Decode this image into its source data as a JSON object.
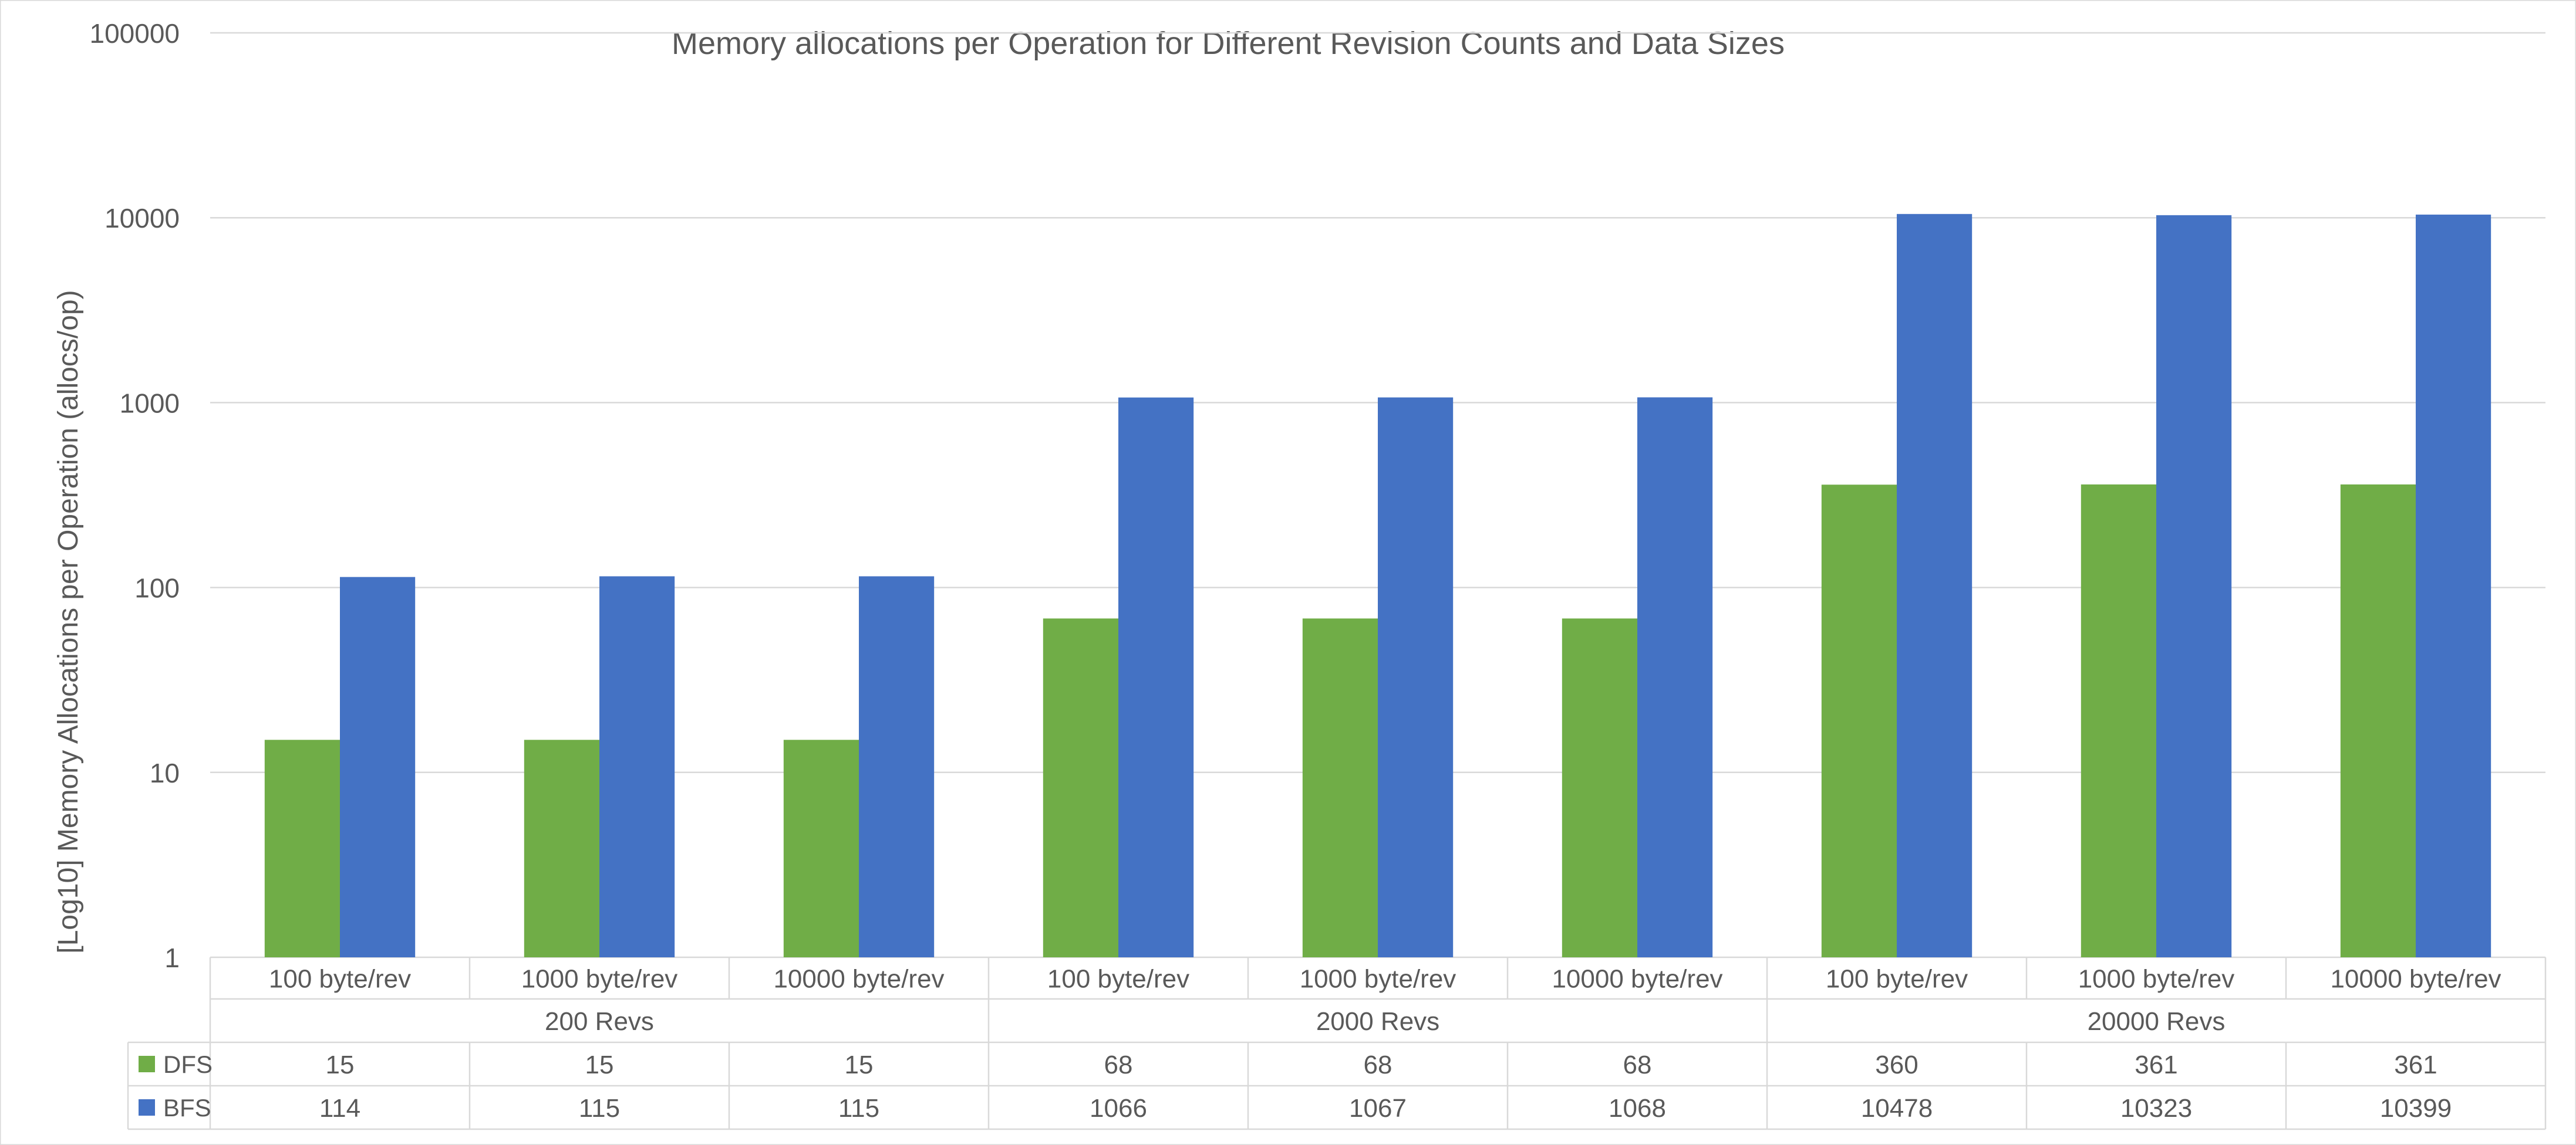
{
  "chart_data": {
    "type": "bar",
    "title": "Memory allocations per Operation for Different Revision Counts and Data Sizes",
    "xlabel": "",
    "ylabel": "[Log10] Memory Allocations per Operation (allocs/op)",
    "yscale": "log",
    "ylim": [
      1,
      100000
    ],
    "yticks": [
      "1",
      "10",
      "100",
      "1000",
      "10000",
      "100000"
    ],
    "grid": true,
    "legend": "data-table",
    "groups": [
      "200 Revs",
      "2000 Revs",
      "20000 Revs"
    ],
    "categories": [
      "100 byte/rev",
      "1000 byte/rev",
      "10000 byte/rev",
      "100 byte/rev",
      "1000 byte/rev",
      "10000 byte/rev",
      "100 byte/rev",
      "1000 byte/rev",
      "10000 byte/rev"
    ],
    "series": [
      {
        "name": "DFS",
        "color": "#70ad47",
        "values": [
          15,
          15,
          15,
          68,
          68,
          68,
          360,
          361,
          361
        ]
      },
      {
        "name": "BFS",
        "color": "#4472c4",
        "values": [
          114,
          115,
          115,
          1066,
          1067,
          1068,
          10478,
          10323,
          10399
        ]
      }
    ]
  }
}
